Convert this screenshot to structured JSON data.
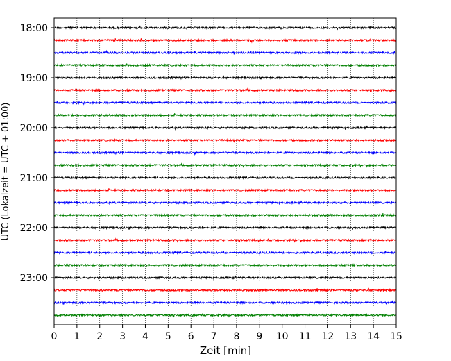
{
  "chart_data": {
    "type": "line",
    "title": "",
    "xlabel": "Zeit  [min]",
    "ylabel": "UTC (Lokalzeit = UTC + 01:00)",
    "xlim": [
      0,
      15
    ],
    "x_ticks": [
      "0",
      "1",
      "2",
      "3",
      "4",
      "5",
      "6",
      "7",
      "8",
      "9",
      "10",
      "11",
      "12",
      "13",
      "14",
      "15"
    ],
    "y_tick_labels": [
      "18:00",
      "19:00",
      "20:00",
      "21:00",
      "22:00",
      "23:00"
    ],
    "grid": "vertical dotted lines at each minute",
    "trace_colors": [
      "#000000",
      "#ff0000",
      "#0000ff",
      "#008000"
    ],
    "traces": [
      {
        "start": "18:00",
        "color": "#000000"
      },
      {
        "start": "18:15",
        "color": "#ff0000"
      },
      {
        "start": "18:30",
        "color": "#0000ff"
      },
      {
        "start": "18:45",
        "color": "#008000"
      },
      {
        "start": "19:00",
        "color": "#000000"
      },
      {
        "start": "19:15",
        "color": "#ff0000"
      },
      {
        "start": "19:30",
        "color": "#0000ff"
      },
      {
        "start": "19:45",
        "color": "#008000"
      },
      {
        "start": "20:00",
        "color": "#000000"
      },
      {
        "start": "20:15",
        "color": "#ff0000"
      },
      {
        "start": "20:30",
        "color": "#0000ff"
      },
      {
        "start": "20:45",
        "color": "#008000"
      },
      {
        "start": "21:00",
        "color": "#000000"
      },
      {
        "start": "21:15",
        "color": "#ff0000"
      },
      {
        "start": "21:30",
        "color": "#0000ff"
      },
      {
        "start": "21:45",
        "color": "#008000"
      },
      {
        "start": "22:00",
        "color": "#000000"
      },
      {
        "start": "22:15",
        "color": "#ff0000"
      },
      {
        "start": "22:30",
        "color": "#0000ff"
      },
      {
        "start": "22:45",
        "color": "#008000"
      },
      {
        "start": "23:00",
        "color": "#000000"
      },
      {
        "start": "23:15",
        "color": "#ff0000"
      },
      {
        "start": "23:30",
        "color": "#0000ff"
      },
      {
        "start": "23:45",
        "color": "#008000"
      }
    ]
  }
}
